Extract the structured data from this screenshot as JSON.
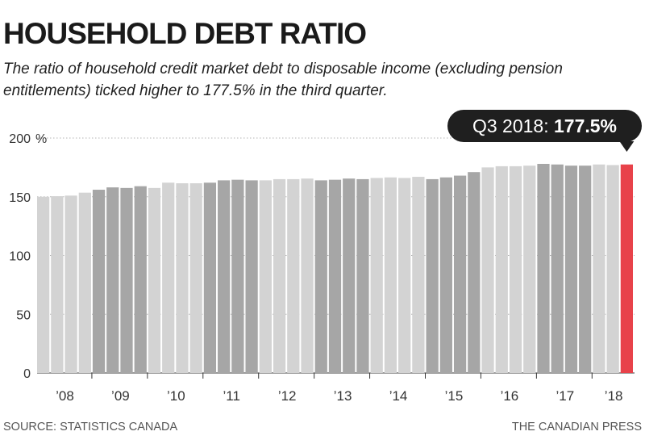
{
  "header": {
    "title": "HOUSEHOLD DEBT RATIO",
    "subtitle": "The ratio of household credit market debt to disposable income (excluding pension entitlements) ticked higher to 177.5% in the third quarter."
  },
  "footer": {
    "source": "SOURCE: STATISTICS CANADA",
    "credit": "THE CANADIAN PRESS"
  },
  "colors": {
    "light_bar": "#d3d3d3",
    "dark_bar": "#a6a6a6",
    "highlight_bar": "#e8424a",
    "callout_bg": "#1f1f1f",
    "callout_text": "#ffffff"
  },
  "chart_data": {
    "type": "bar",
    "y_unit_label": "%",
    "ylim": [
      0,
      200
    ],
    "y_ticks": [
      "0",
      "50",
      "100",
      "150",
      "200"
    ],
    "grid": "dotted horizontal",
    "year_labels": [
      "’08",
      "’09",
      "’10",
      "’11",
      "’12",
      "’13",
      "’14",
      "’15",
      "’16",
      "’17",
      "’18"
    ],
    "values": [
      150,
      150.5,
      151,
      153.5,
      156,
      158,
      157.5,
      159,
      157.5,
      162,
      161.5,
      161.5,
      162,
      164,
      164.5,
      164,
      164,
      165,
      165,
      165.5,
      164,
      164.5,
      165.5,
      165,
      166,
      166.5,
      166,
      167,
      165,
      166.5,
      168,
      171,
      175,
      176,
      176,
      176.5,
      178,
      177.5,
      176.5,
      176.5,
      177.5,
      177,
      177.5
    ],
    "highlight": {
      "label": "Q3 2018:",
      "value": "177.5%"
    }
  }
}
